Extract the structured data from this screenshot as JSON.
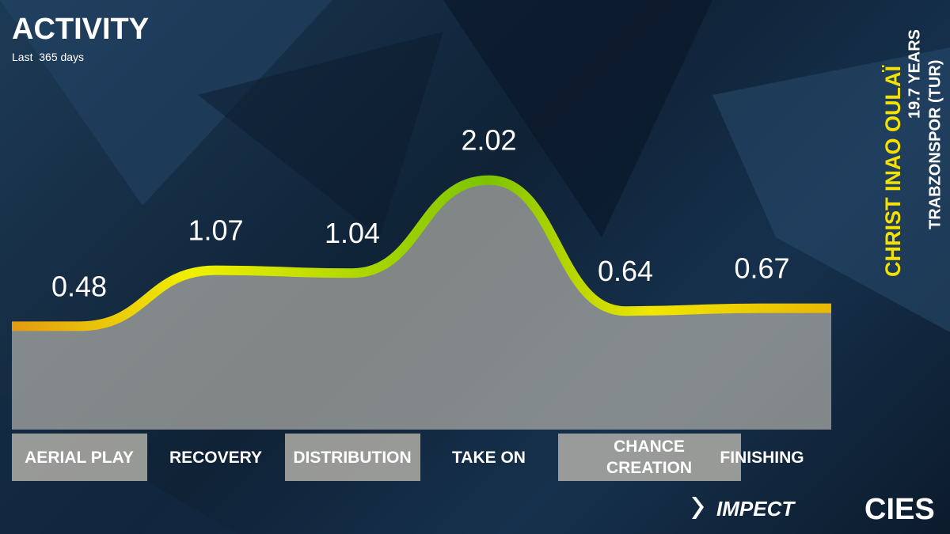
{
  "chart_data": {
    "type": "line",
    "title": "ACTIVITY",
    "subtitle": "Last  365 days",
    "categories": [
      "AERIAL PLAY",
      "RECOVERY",
      "DISTRIBUTION",
      "TAKE ON",
      "CHANCE CREATION",
      "FINISHING"
    ],
    "values": [
      0.48,
      1.07,
      1.04,
      2.02,
      0.64,
      0.67
    ]
  },
  "player": {
    "name": "CHRIST INAO OULAÏ",
    "age": "19.7 YEARS",
    "club": "TRABZONSPOR (TUR)"
  },
  "logos": [
    "IMPECT",
    "CIES"
  ]
}
